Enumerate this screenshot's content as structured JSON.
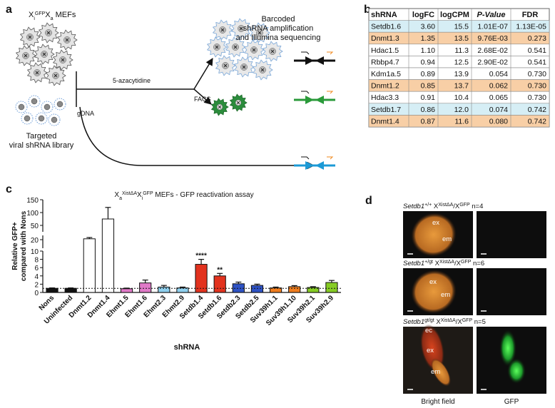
{
  "panel_labels": [
    "a",
    "b",
    "c",
    "d"
  ],
  "diagram": {
    "mef_label": {
      "base": "X",
      "sub": "i",
      "sup": "GFP",
      "base2": "X",
      "sub2": "a",
      "rest": " MEFs"
    },
    "treatment": "5-azacytidine",
    "sort": "FACS",
    "gdna": "gDNA",
    "library": [
      "Targeted",
      "viral shRNA library"
    ],
    "sequencing": [
      "Barcoded",
      "shRNA amplification",
      "and Illumina sequencing"
    ]
  },
  "table": {
    "header": [
      "shRNA",
      "logFC",
      "logCPM",
      "P-Value",
      "FDR"
    ],
    "rows": [
      [
        "Setdb1.6",
        "3.60",
        "15.5",
        "1.01E-07",
        "1.13E-05"
      ],
      [
        "Dnmt1.3",
        "1.35",
        "13.5",
        "9.76E-03",
        "0.273"
      ],
      [
        "Hdac1.5",
        "1.10",
        "11.3",
        "2.68E-02",
        "0.541"
      ],
      [
        "Rbbp4.7",
        "0.94",
        "12.5",
        "2.90E-02",
        "0.541"
      ],
      [
        "Kdm1a.5",
        "0.89",
        "13.9",
        "0.054",
        "0.730"
      ],
      [
        "Dnmt1.2",
        "0.85",
        "13.7",
        "0.062",
        "0.730"
      ],
      [
        "Hdac3.3",
        "0.91",
        "10.4",
        "0.065",
        "0.730"
      ],
      [
        "Setdb1.7",
        "0.86",
        "12.0",
        "0.074",
        "0.742"
      ],
      [
        "Dnmt1.4",
        "0.87",
        "11.6",
        "0.080",
        "0.742"
      ]
    ],
    "row_colors": [
      "#d6eef5",
      "#f8cfa6",
      "#ffffff",
      "#ffffff",
      "#ffffff",
      "#f8cfa6",
      "#ffffff",
      "#d6eef5",
      "#f8cfa6"
    ]
  },
  "chart_data": {
    "type": "bar",
    "title": {
      "base": "X",
      "sub": "a",
      "sup": "XistΔA",
      "base2": "X",
      "sub2": "i",
      "sup2": "GFP",
      "rest": " MEFs - GFP reactivation assay"
    },
    "ylabel": [
      "Relative GFP+",
      "compared with Nons"
    ],
    "xlabel": "shRNA",
    "categories": [
      "Nons",
      "Uninfected",
      "Dnmt1.2",
      "Dnmt1.4",
      "Ehmt1.5",
      "Ehmt1.6",
      "Ehmt2.3",
      "Ehmt2.9",
      "Setdb1.4",
      "Setdb1.6",
      "Setdb2.3",
      "Setdb2.5",
      "Suv39h1.1",
      "Suv39h1.10",
      "Suv39h2.1",
      "Suv39h2.9"
    ],
    "values": [
      1,
      1,
      21,
      75,
      0.9,
      2.3,
      1.3,
      1.1,
      6.8,
      4.0,
      2.1,
      1.7,
      1.1,
      1.4,
      1.2,
      2.4
    ],
    "errors": [
      0.1,
      0.1,
      1.5,
      45,
      0.15,
      0.7,
      0.4,
      0.2,
      1.2,
      0.6,
      0.4,
      0.3,
      0.2,
      0.25,
      0.2,
      0.5
    ],
    "colors": [
      "#111111",
      "#111111",
      "#ffffff",
      "#ffffff",
      "#e07ac8",
      "#e07ac8",
      "#8fd0ee",
      "#8fd0ee",
      "#e2321e",
      "#e2321e",
      "#2e52c4",
      "#2e52c4",
      "#f07d1e",
      "#f07d1e",
      "#86cc24",
      "#86cc24"
    ],
    "significance": [
      null,
      null,
      null,
      null,
      null,
      null,
      null,
      null,
      "****",
      "**",
      null,
      null,
      null,
      null,
      null,
      null
    ],
    "reference_line": 1,
    "y_segments": [
      {
        "ylim": [
          0,
          10
        ],
        "yticks": [
          0,
          2,
          4,
          6,
          8,
          10
        ]
      },
      {
        "ylim": [
          10,
          25
        ],
        "yticks": [
          20
        ]
      },
      {
        "ylim": [
          25,
          150
        ],
        "yticks": [
          50,
          100,
          150
        ]
      }
    ]
  },
  "images": {
    "rows": [
      {
        "gene": "Setdb1",
        "allele": "+/+",
        "x": " X",
        "x_sup": "XistΔA",
        "slash": "/X",
        "x2_sup": "GFP",
        "n": " n=4",
        "labels": [
          "ex",
          "em"
        ]
      },
      {
        "gene": "Setdb1",
        "allele": "+/gt",
        "x": " X",
        "x_sup": "XistΔA",
        "slash": "/X",
        "x2_sup": "GFP",
        "n": " n=6",
        "labels": [
          "ex",
          "em"
        ]
      },
      {
        "gene": "Setdb1",
        "allele": "gt/gt",
        "x": " X",
        "x_sup": "XistΔA",
        "slash": "/X",
        "x2_sup": "GFP",
        "n": " n=5",
        "labels": [
          "ec",
          "ex",
          "em"
        ]
      }
    ],
    "columns": [
      "Bright field",
      "GFP"
    ]
  }
}
